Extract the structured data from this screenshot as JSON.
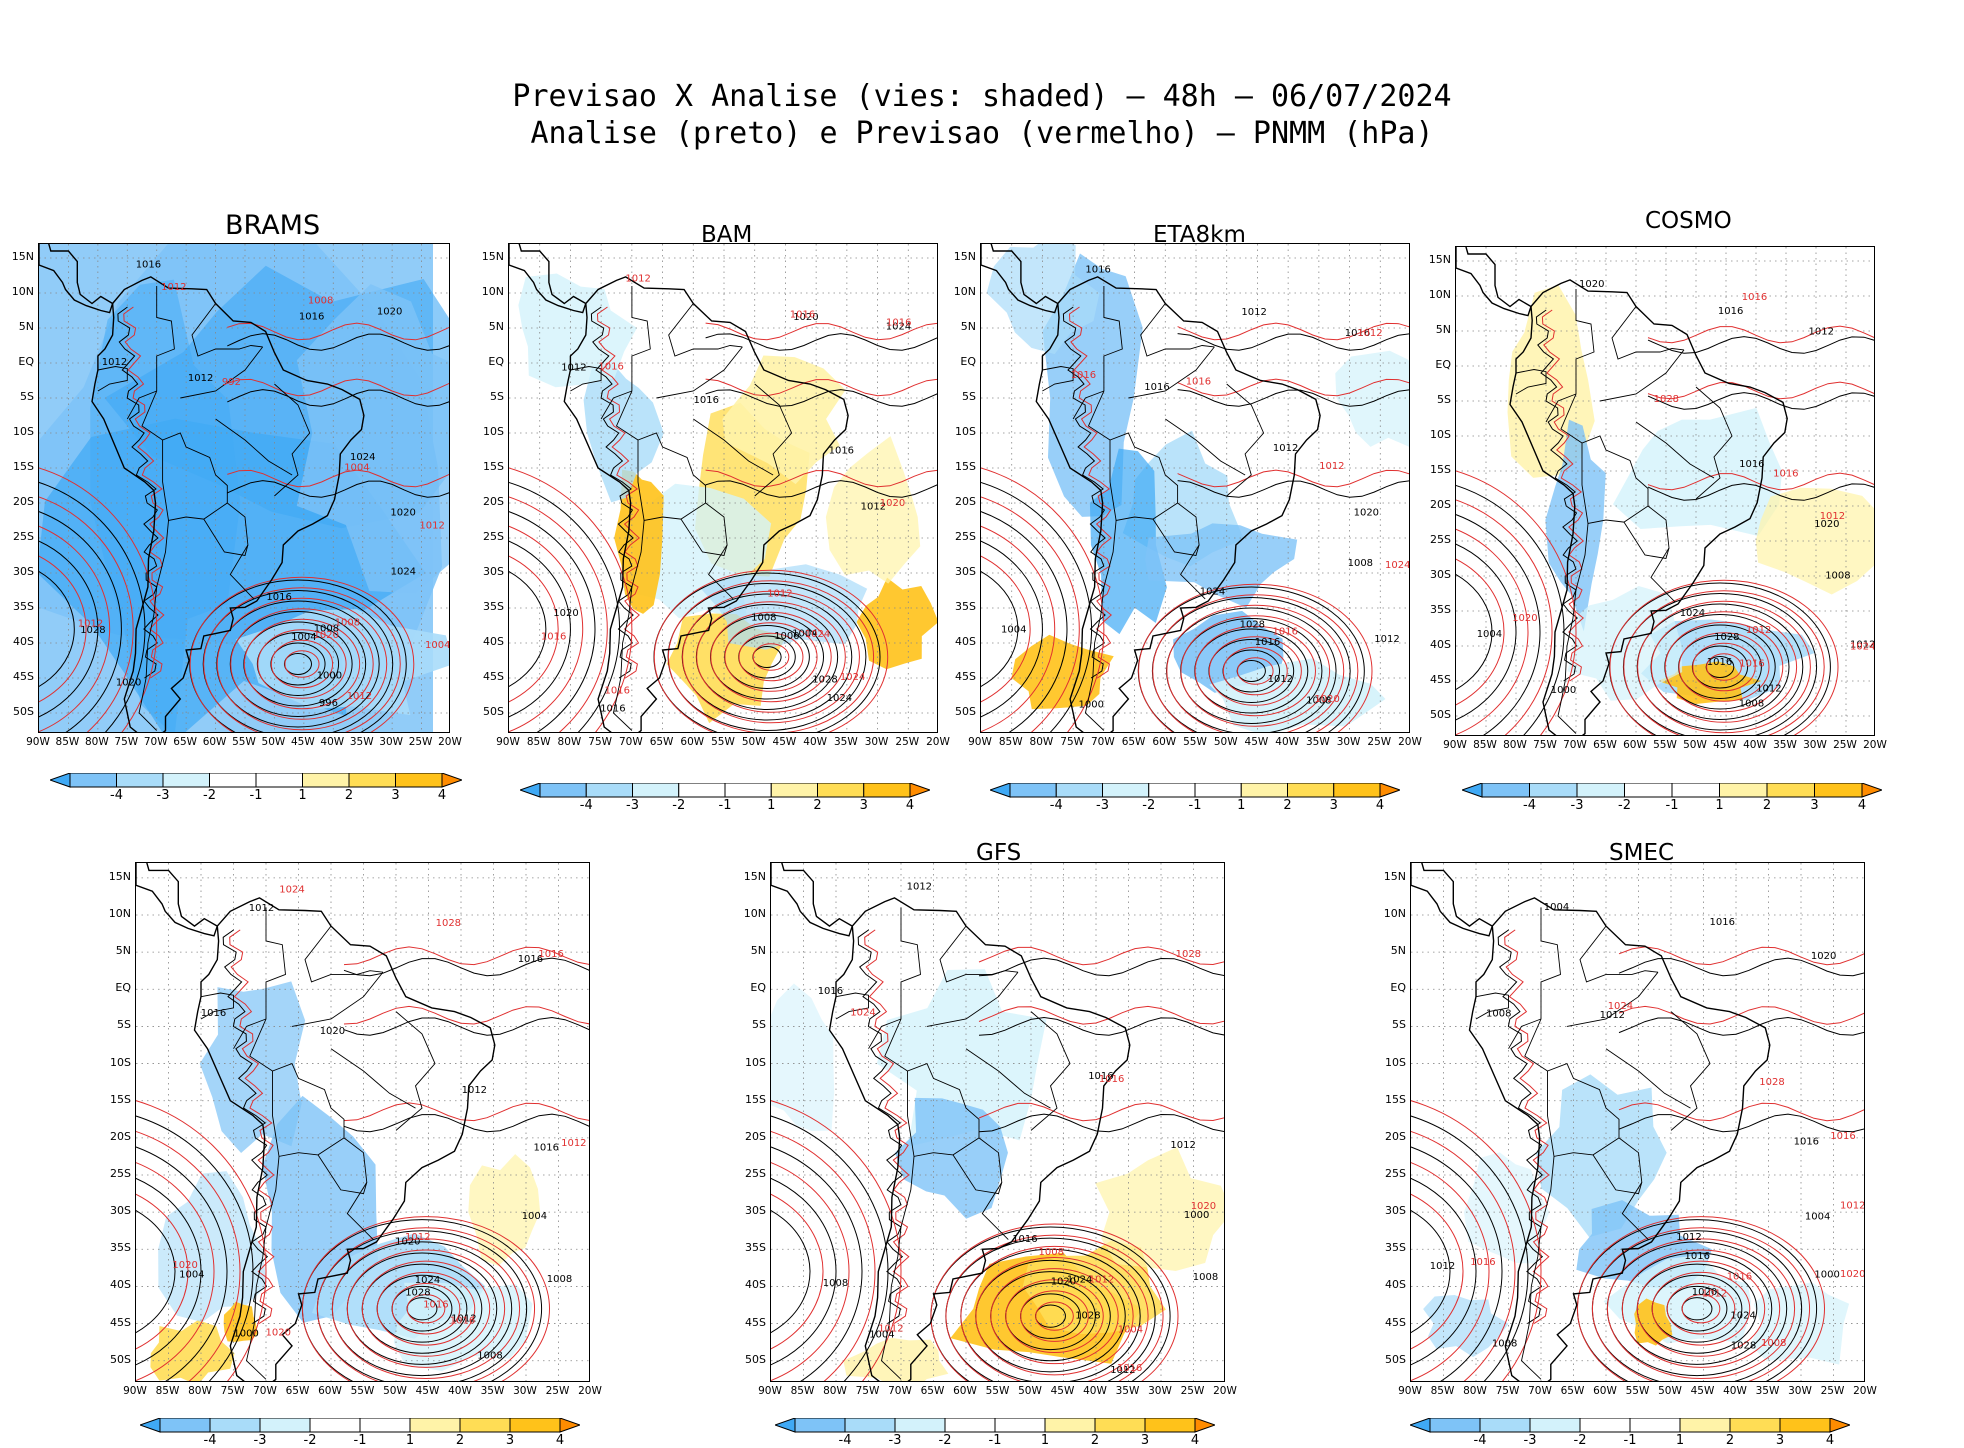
{
  "title": {
    "line1": "Previsao X Analise (vies: shaded) – 48h – 06/07/2024",
    "line2": "Analise (preto) e Previsao (vermelho) – PNMM (hPa)"
  },
  "lat_labels": [
    "15N",
    "10N",
    "5N",
    "EQ",
    "5S",
    "10S",
    "15S",
    "20S",
    "25S",
    "30S",
    "35S",
    "40S",
    "45S",
    "50S"
  ],
  "lon_labels": [
    "90W",
    "85W",
    "80W",
    "75W",
    "70W",
    "65W",
    "60W",
    "55W",
    "50W",
    "45W",
    "40W",
    "35W",
    "30W",
    "25W",
    "20W"
  ],
  "colorbar": {
    "labels": [
      "-4",
      "-3",
      "-2",
      "-1",
      "1",
      "2",
      "3",
      "4"
    ],
    "colors": [
      "#3fa9f5",
      "#7ec3f7",
      "#a9dcf9",
      "#d3f2fb",
      "#ffffff",
      "#fff3a8",
      "#ffdd55",
      "#ffc21a",
      "#ffa500",
      "#ff8c00"
    ]
  },
  "legend": {
    "analysis_color": "#000000",
    "forecast_color": "#e03030"
  },
  "panels": [
    {
      "id": "brams",
      "title": "BRAMS",
      "labels": {
        "black": [
          "1016",
          "1012",
          "1012",
          "1016",
          "1020",
          "1024",
          "1020",
          "1016",
          "1008",
          "1004",
          "1000",
          "996",
          "1028",
          "1020",
          "1024"
        ],
        "red": [
          "1012",
          "1008",
          "1012",
          "1020",
          "1012",
          "1004",
          "992",
          "1004",
          "1008",
          "1012"
        ]
      }
    },
    {
      "id": "bam",
      "title": "BAM",
      "labels": {
        "black": [
          "1012",
          "1016",
          "1020",
          "1024",
          "1016",
          "1012",
          "1008",
          "1004",
          "1000",
          "1028",
          "1024",
          "1020",
          "1016"
        ],
        "red": [
          "1016",
          "1016",
          "1012",
          "1024",
          "1016",
          "1012",
          "1016",
          "1020",
          "1024",
          "1016"
        ]
      }
    },
    {
      "id": "eta8km",
      "title": "ETA8km",
      "labels": {
        "black": [
          "1016",
          "1012",
          "1016",
          "1012",
          "1020",
          "1024",
          "1028",
          "1016",
          "1012",
          "1008",
          "1004",
          "1000",
          "1008",
          "1012",
          "1016"
        ],
        "red": [
          "1016",
          "1012",
          "1016",
          "1020",
          "1024",
          "1016",
          "1012"
        ]
      }
    },
    {
      "id": "cosmo",
      "title": "COSMO",
      "labels": {
        "black": [
          "1016",
          "1012",
          "1016",
          "1020",
          "1024",
          "1028",
          "1016",
          "1012",
          "1008",
          "1004",
          "1000",
          "1008",
          "1012",
          "1020"
        ],
        "red": [
          "1016",
          "1012",
          "1016",
          "1020",
          "1024",
          "1028",
          "1016",
          "1012"
        ]
      }
    },
    {
      "id": "unnamed",
      "title": "",
      "labels": {
        "black": [
          "1016",
          "1012",
          "1016",
          "1020",
          "1024",
          "1028",
          "1012",
          "1008",
          "1004",
          "1000",
          "1004",
          "1008",
          "1012",
          "1016",
          "1020"
        ],
        "red": [
          "1016",
          "1012",
          "1016",
          "1020",
          "1024",
          "1028",
          "1012",
          "1016",
          "1020"
        ]
      }
    },
    {
      "id": "gfs",
      "title": "GFS",
      "labels": {
        "black": [
          "1016",
          "1012",
          "1016",
          "1020",
          "1024",
          "1028",
          "1012",
          "1008",
          "1004",
          "1000",
          "1008",
          "1012",
          "1016"
        ],
        "red": [
          "1016",
          "1012",
          "1016",
          "1020",
          "1024",
          "1028",
          "1008",
          "1004",
          "1012"
        ]
      }
    },
    {
      "id": "smec",
      "title": "SMEC",
      "labels": {
        "black": [
          "1016",
          "1012",
          "1016",
          "1020",
          "1024",
          "1028",
          "1012",
          "1008",
          "1004",
          "1000",
          "1004",
          "1008",
          "1012",
          "1016",
          "1020"
        ],
        "red": [
          "1016",
          "1012",
          "1016",
          "1020",
          "1024",
          "1028",
          "1016",
          "1008",
          "1012"
        ]
      }
    }
  ]
}
